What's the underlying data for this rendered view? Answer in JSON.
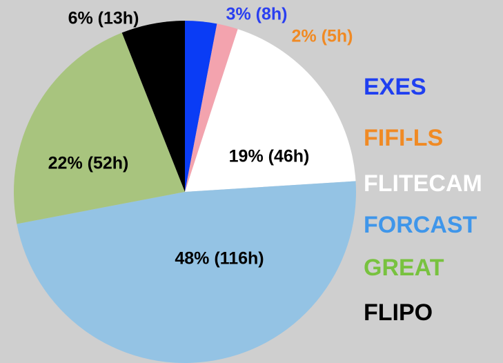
{
  "chart_data": {
    "type": "pie",
    "categories": [
      "EXES",
      "FIFI-LS",
      "FLITECAM",
      "FORCAST",
      "GREAT",
      "FLIPO"
    ],
    "values": [
      3,
      2,
      19,
      48,
      22,
      6
    ],
    "value_labels": [
      "3% (8h)",
      "2% (5h)",
      "19% (46h)",
      "48% (116h)",
      "22% (52h)",
      "6% (13h)"
    ],
    "colors": [
      "#0a3cf5",
      "#f3a3ae",
      "#ffffff",
      "#94c3e4",
      "#a8c47e",
      "#000000"
    ],
    "legend_colors": [
      "#1f3ff0",
      "#f08a24",
      "#ffffff",
      "#3f96ea",
      "#78c23f",
      "#000000"
    ],
    "value_label_colors": [
      "#2a3ff0",
      "#f08a24",
      "#000000",
      "#000000",
      "#000000",
      "#000000"
    ]
  }
}
